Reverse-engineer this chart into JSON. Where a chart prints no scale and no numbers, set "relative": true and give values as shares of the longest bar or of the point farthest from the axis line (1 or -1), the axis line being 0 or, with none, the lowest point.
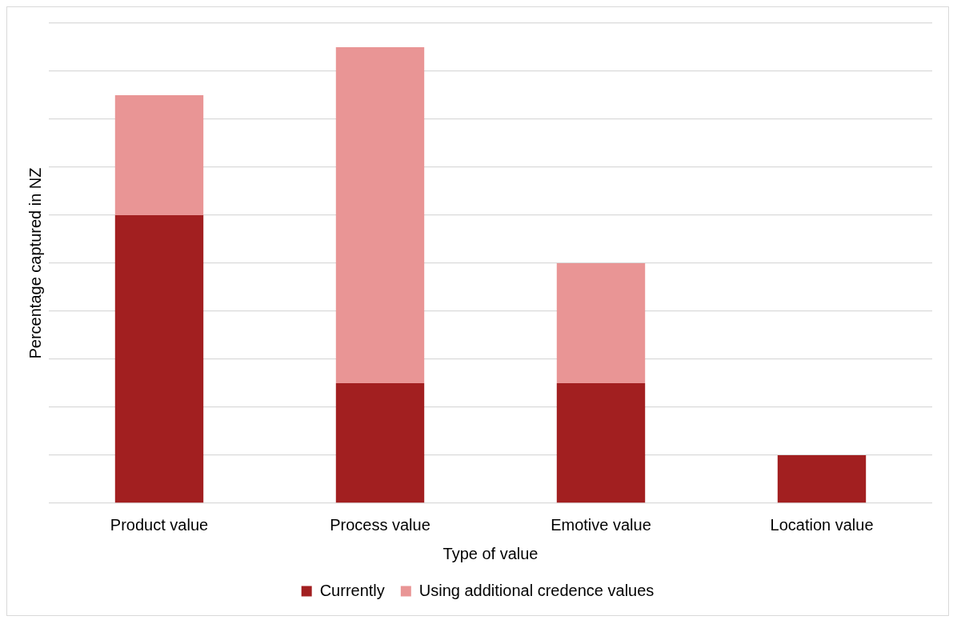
{
  "chart_data": {
    "type": "bar",
    "xlabel": "Type of value",
    "ylabel": "Percentage captured in NZ",
    "categories": [
      "Product value",
      "Process value",
      "Emotive value",
      "Location value"
    ],
    "stacked": true,
    "relative": true,
    "grid": "y",
    "legend": "bottom",
    "series": [
      {
        "name": "Currently",
        "color": "#a21f20",
        "values": [
          0.6316,
          0.2632,
          0.2632,
          0.1053
        ]
      },
      {
        "name": "Using additional credence values",
        "color": "#e99595",
        "values": [
          0.2632,
          0.7368,
          0.2632,
          0
        ]
      }
    ]
  }
}
